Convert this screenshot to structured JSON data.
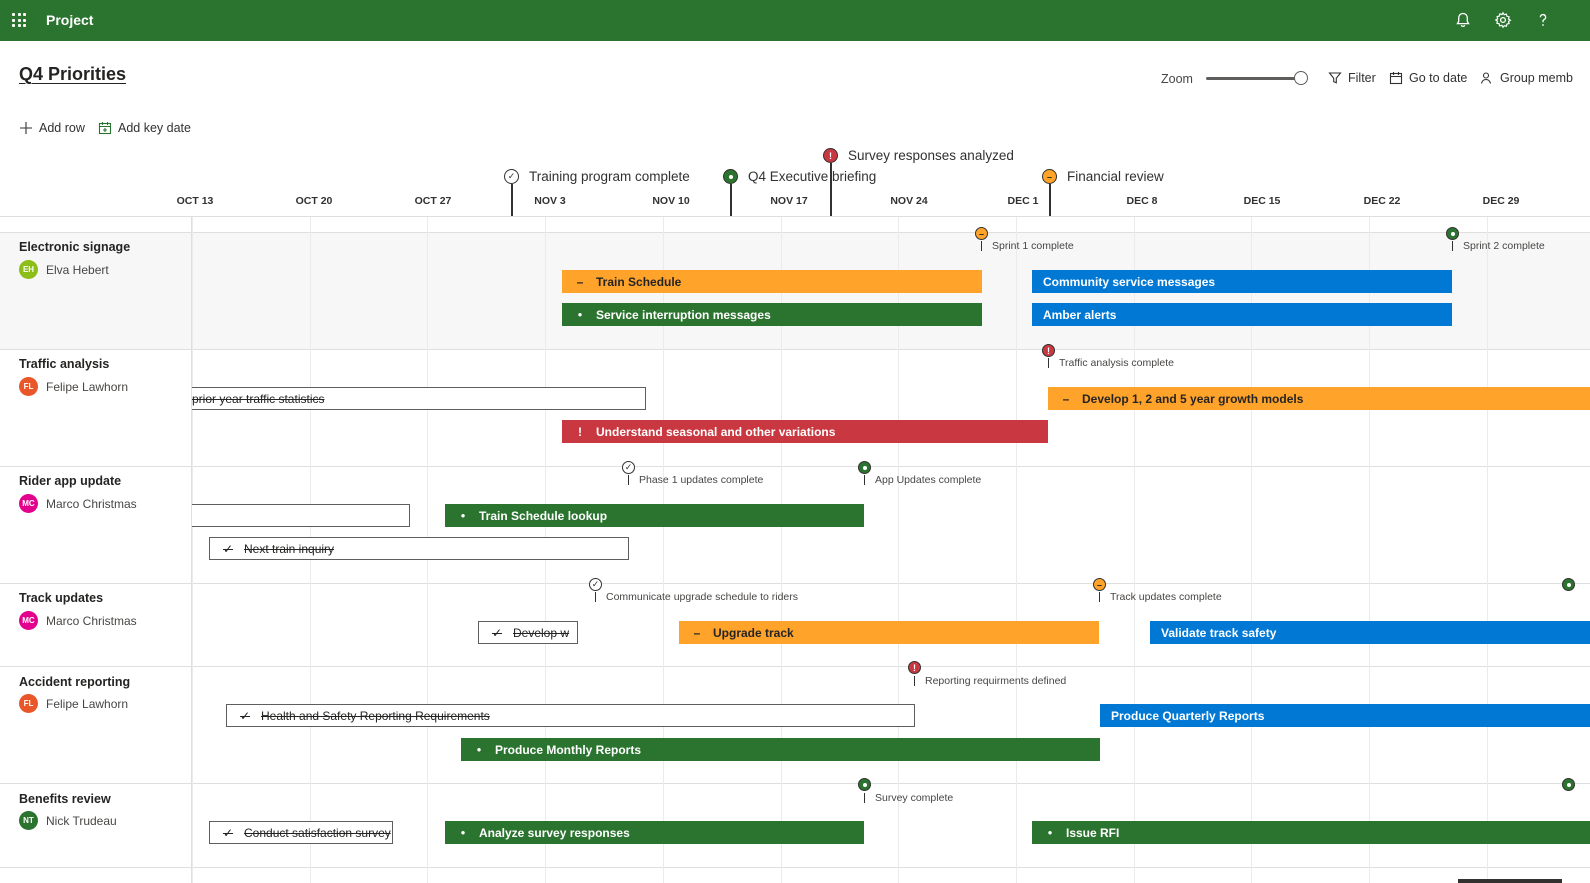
{
  "app": {
    "name": "Project",
    "notifications_icon": "bell-icon",
    "settings_icon": "gear-icon",
    "help_icon": "help-icon"
  },
  "page": {
    "title": "Q4 Priorities"
  },
  "toolbar": {
    "zoom_label": "Zoom",
    "zoom_level": 1.0,
    "filter_label": "Filter",
    "go_to_date_label": "Go to date",
    "group_label": "Group memb"
  },
  "commands": {
    "add_row_label": "Add row",
    "add_key_date_label": "Add key date"
  },
  "key_dates": [
    {
      "label": "Survey responses analyzed",
      "status": "critical"
    },
    {
      "label": "Training program complete",
      "status": "complete"
    },
    {
      "label": "Q4 Executive briefing",
      "status": "on-track"
    },
    {
      "label": "Financial review",
      "status": "at-risk"
    }
  ],
  "timeline": {
    "dates": [
      "OCT 13",
      "OCT 20",
      "OCT 27",
      "NOV 3",
      "NOV 10",
      "NOV 17",
      "NOV 24",
      "DEC 1",
      "DEC 8",
      "DEC 15",
      "DEC 22",
      "DEC 29"
    ]
  },
  "rows": [
    {
      "title": "Electronic signage",
      "owner": {
        "name": "Elva Hebert",
        "initials": "EH",
        "color": "#8cbd18"
      },
      "milestones": [
        {
          "label": "Sprint 1 complete",
          "status": "at-risk"
        },
        {
          "label": "Sprint 2 complete",
          "status": "on-track"
        }
      ],
      "bars": [
        {
          "label": "Train Schedule",
          "status": "at-risk",
          "glyph": "–"
        },
        {
          "label": "Service interruption messages",
          "status": "on-track",
          "glyph": "●"
        },
        {
          "label": "Community service messages",
          "status": "not-started",
          "glyph": ""
        },
        {
          "label": "Amber alerts",
          "status": "not-started",
          "glyph": ""
        }
      ]
    },
    {
      "title": "Traffic analysis",
      "owner": {
        "name": "Felipe Lawhorn",
        "initials": "FL",
        "color": "#e8562a"
      },
      "milestones": [
        {
          "label": "Traffic analysis complete",
          "status": "critical"
        }
      ],
      "bars": [
        {
          "label": "prior year traffic statistics",
          "status": "complete",
          "glyph": ""
        },
        {
          "label": "Develop 1, 2 and 5 year growth models",
          "status": "at-risk",
          "glyph": "–"
        },
        {
          "label": "Understand seasonal and other variations",
          "status": "critical",
          "glyph": "!"
        }
      ]
    },
    {
      "title": "Rider app update",
      "owner": {
        "name": "Marco Christmas",
        "initials": "MC",
        "color": "#e3008c"
      },
      "milestones": [
        {
          "label": "Phase 1 updates complete",
          "status": "complete"
        },
        {
          "label": "App Updates complete",
          "status": "on-track"
        }
      ],
      "bars": [
        {
          "label": "",
          "status": "complete",
          "glyph": ""
        },
        {
          "label": "Train Schedule lookup",
          "status": "on-track",
          "glyph": "●"
        },
        {
          "label": "Next train inquiry",
          "status": "complete",
          "glyph": "✓"
        }
      ]
    },
    {
      "title": "Track updates",
      "owner": {
        "name": "Marco Christmas",
        "initials": "MC",
        "color": "#e3008c"
      },
      "milestones": [
        {
          "label": "Communicate upgrade schedule to riders",
          "status": "complete"
        },
        {
          "label": "Track updates complete",
          "status": "at-risk"
        }
      ],
      "bars": [
        {
          "label": "Develop w",
          "status": "complete",
          "glyph": "✓"
        },
        {
          "label": "Upgrade track",
          "status": "at-risk",
          "glyph": "–"
        },
        {
          "label": "Validate track safety",
          "status": "not-started",
          "glyph": ""
        }
      ]
    },
    {
      "title": "Accident reporting",
      "owner": {
        "name": "Felipe Lawhorn",
        "initials": "FL",
        "color": "#e8562a"
      },
      "milestones": [
        {
          "label": "Reporting requirments defined",
          "status": "critical"
        }
      ],
      "bars": [
        {
          "label": "Health and Safety Reporting Requirements",
          "status": "complete",
          "glyph": "✓"
        },
        {
          "label": "Produce Quarterly Reports",
          "status": "not-started",
          "glyph": ""
        },
        {
          "label": "Produce Monthly Reports",
          "status": "on-track",
          "glyph": "●"
        }
      ]
    },
    {
      "title": "Benefits review",
      "owner": {
        "name": "Nick Trudeau",
        "initials": "NT",
        "color": "#2b742f"
      },
      "milestones": [
        {
          "label": "Survey complete",
          "status": "on-track"
        }
      ],
      "bars": [
        {
          "label": "Conduct satisfaction survey",
          "status": "complete",
          "glyph": "✓"
        },
        {
          "label": "Analyze survey responses",
          "status": "on-track",
          "glyph": "●"
        },
        {
          "label": "Issue RFI",
          "status": "on-track",
          "glyph": "●"
        }
      ]
    }
  ],
  "colors": {
    "brand": "#2b742f",
    "on_track": "#2b742f",
    "at_risk": "#ffa32b",
    "critical": "#c93840",
    "not_started": "#0078d4"
  }
}
